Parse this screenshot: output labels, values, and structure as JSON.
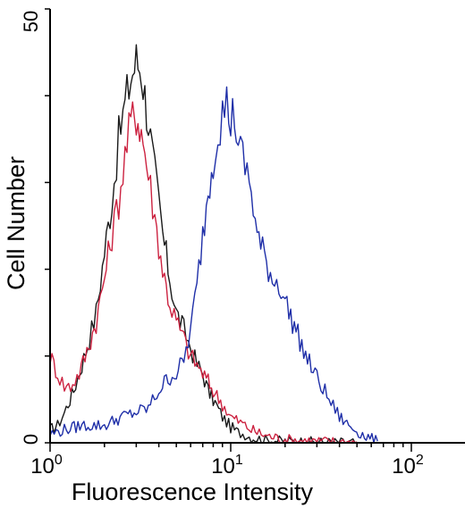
{
  "chart_data": {
    "type": "line",
    "title": "",
    "xlabel": "Fluorescence Intensity",
    "ylabel": "Cell Number",
    "xscale": "log",
    "xlim": [
      1,
      200
    ],
    "ylim": [
      0,
      50
    ],
    "x_ticks": [
      {
        "value": 1,
        "base": "10",
        "exp": "0"
      },
      {
        "value": 10,
        "base": "10",
        "exp": "1"
      },
      {
        "value": 100,
        "base": "10",
        "exp": "2"
      }
    ],
    "y_ticks": [
      {
        "value": 0,
        "label": "0"
      },
      {
        "value": 50,
        "label": "50"
      }
    ],
    "grid": false,
    "legend": "none",
    "series": [
      {
        "color": "#1a1a1a",
        "x": [
          1.0,
          1.1,
          1.2,
          1.35,
          1.5,
          1.65,
          1.8,
          2.0,
          2.2,
          2.4,
          2.6,
          2.8,
          3.0,
          3.2,
          3.5,
          3.8,
          4.2,
          4.6,
          5.0,
          5.5,
          6.0,
          6.5,
          7.0,
          7.5,
          8.0,
          9.0,
          10.0,
          11.0,
          12.0,
          13.0,
          14.0,
          16.0,
          20.0,
          30.0,
          50.0
        ],
        "y": [
          1.5,
          2.0,
          3.5,
          6.0,
          9.0,
          12.0,
          15.0,
          22.0,
          28.0,
          35.0,
          39.0,
          42.0,
          44.0,
          43.0,
          37.0,
          31.0,
          24.0,
          19.0,
          15.0,
          13.0,
          11.0,
          9.0,
          8.0,
          6.0,
          5.0,
          3.0,
          1.8,
          1.2,
          1.0,
          0.6,
          0.5,
          0.3,
          0.2,
          0.1,
          0.0
        ]
      },
      {
        "color": "#cc2240",
        "x": [
          1.0,
          1.05,
          1.1,
          1.2,
          1.3,
          1.45,
          1.6,
          1.8,
          2.0,
          2.2,
          2.4,
          2.6,
          2.8,
          3.0,
          3.2,
          3.5,
          3.8,
          4.2,
          4.6,
          5.0,
          5.5,
          6.0,
          6.5,
          7.0,
          7.5,
          8.0,
          9.0,
          10.0,
          11.0,
          12.0,
          13.0,
          14.0,
          16.0,
          20.0,
          30.0,
          50.0
        ],
        "y": [
          10.0,
          9.0,
          8.0,
          6.5,
          6.5,
          8.0,
          10.5,
          14.0,
          19.0,
          24.0,
          28.0,
          33.0,
          37.0,
          38.0,
          36.0,
          31.0,
          26.0,
          20.0,
          16.0,
          14.0,
          12.0,
          10.0,
          9.0,
          8.0,
          7.0,
          6.0,
          4.5,
          3.0,
          2.5,
          2.0,
          1.5,
          1.2,
          0.8,
          0.4,
          0.2,
          0.1
        ]
      },
      {
        "color": "#1f2fa8",
        "x": [
          1.0,
          1.2,
          1.5,
          2.0,
          2.5,
          3.0,
          3.5,
          4.0,
          4.5,
          5.0,
          5.5,
          6.0,
          6.5,
          7.0,
          7.5,
          8.0,
          8.5,
          9.0,
          9.5,
          10.0,
          10.5,
          11.0,
          12.0,
          13.0,
          14.0,
          15.0,
          17.0,
          19.0,
          21.0,
          23.0,
          26.0,
          30.0,
          35.0,
          40.0,
          45.0,
          55.0,
          65.0
        ],
        "y": [
          1.0,
          1.5,
          2.0,
          2.0,
          3.0,
          3.5,
          4.0,
          6.0,
          7.5,
          8.0,
          9.5,
          13.0,
          18.0,
          24.0,
          29.0,
          33.0,
          36.0,
          38.0,
          39.0,
          37.0,
          38.0,
          34.0,
          32.0,
          29.0,
          24.0,
          22.0,
          19.0,
          18.0,
          15.0,
          13.0,
          10.0,
          7.5,
          5.0,
          3.0,
          2.0,
          0.8,
          0.2
        ]
      }
    ]
  }
}
